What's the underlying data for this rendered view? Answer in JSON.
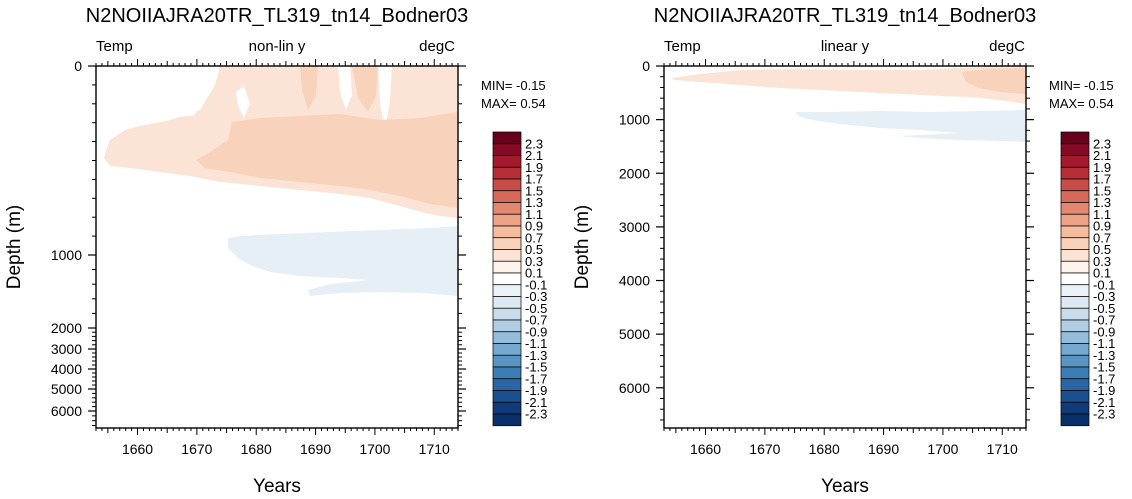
{
  "chart_data": [
    {
      "type": "heatmap",
      "title": "N2NOIIAJRA20TR_TL319_tn14_Bodner03",
      "left_label": "Temp",
      "center_label": "non-lin y",
      "right_label": "degC",
      "xlabel": "Years",
      "ylabel": "Depth (m)",
      "xlim": [
        1653,
        1714
      ],
      "x_ticks": [
        1660,
        1670,
        1680,
        1690,
        1700,
        1710
      ],
      "y_axis": "non-linear",
      "y_ticks": [
        0,
        1000,
        2000,
        3000,
        4000,
        5000,
        6000
      ],
      "min_label": "MIN= -0.15",
      "max_label": "MAX=  0.54",
      "field": [
        {
          "level": "0.1 to 0.3",
          "region": "upper ocean (0-700 m), warming through time"
        },
        {
          "level": "0.3 to 0.5",
          "region": "400-600 m after 1668, deepening toward 1714"
        },
        {
          "level": "-0.3 to -0.1",
          "region": "900-1500 m after 1678"
        }
      ]
    },
    {
      "type": "heatmap",
      "title": "N2NOIIAJRA20TR_TL319_tn14_Bodner03",
      "left_label": "Temp",
      "center_label": "linear y",
      "right_label": "degC",
      "xlabel": "Years",
      "ylabel": "Depth (m)",
      "xlim": [
        1653,
        1714
      ],
      "x_ticks": [
        1660,
        1670,
        1680,
        1690,
        1700,
        1710
      ],
      "y_axis": "linear",
      "ylim": [
        0,
        6750
      ],
      "y_ticks": [
        0,
        1000,
        2000,
        3000,
        4000,
        5000,
        6000
      ],
      "min_label": "MIN= -0.15",
      "max_label": "MAX=  0.54",
      "field": [
        {
          "level": "0.1 to 0.3",
          "region": "upper ocean (0-700 m)"
        },
        {
          "level": "-0.3 to -0.1",
          "region": "900-1500 m after 1678"
        }
      ]
    }
  ],
  "colorbar": {
    "labels": [
      "2.3",
      "2.1",
      "1.9",
      "1.7",
      "1.5",
      "1.3",
      "1.1",
      "0.9",
      "0.7",
      "0.5",
      "0.3",
      "0.1",
      "-0.1",
      "-0.3",
      "-0.5",
      "-0.7",
      "-0.9",
      "-1.1",
      "-1.3",
      "-1.5",
      "-1.7",
      "-1.9",
      "-2.1",
      "-2.3"
    ],
    "colors": [
      "#67001f",
      "#850a25",
      "#a3192d",
      "#b72f36",
      "#c84d48",
      "#d66a5a",
      "#e3876f",
      "#eea286",
      "#f4bb9e",
      "#f8d2bb",
      "#fbe4d5",
      "#fdf4ee",
      "#ffffff",
      "#eaf1f7",
      "#dce9f2",
      "#c8dcec",
      "#b0cde3",
      "#94bdd9",
      "#76a9cf",
      "#5a94c3",
      "#3d7db5",
      "#2a66a5",
      "#1b5090",
      "#103b78",
      "#08306b"
    ]
  }
}
